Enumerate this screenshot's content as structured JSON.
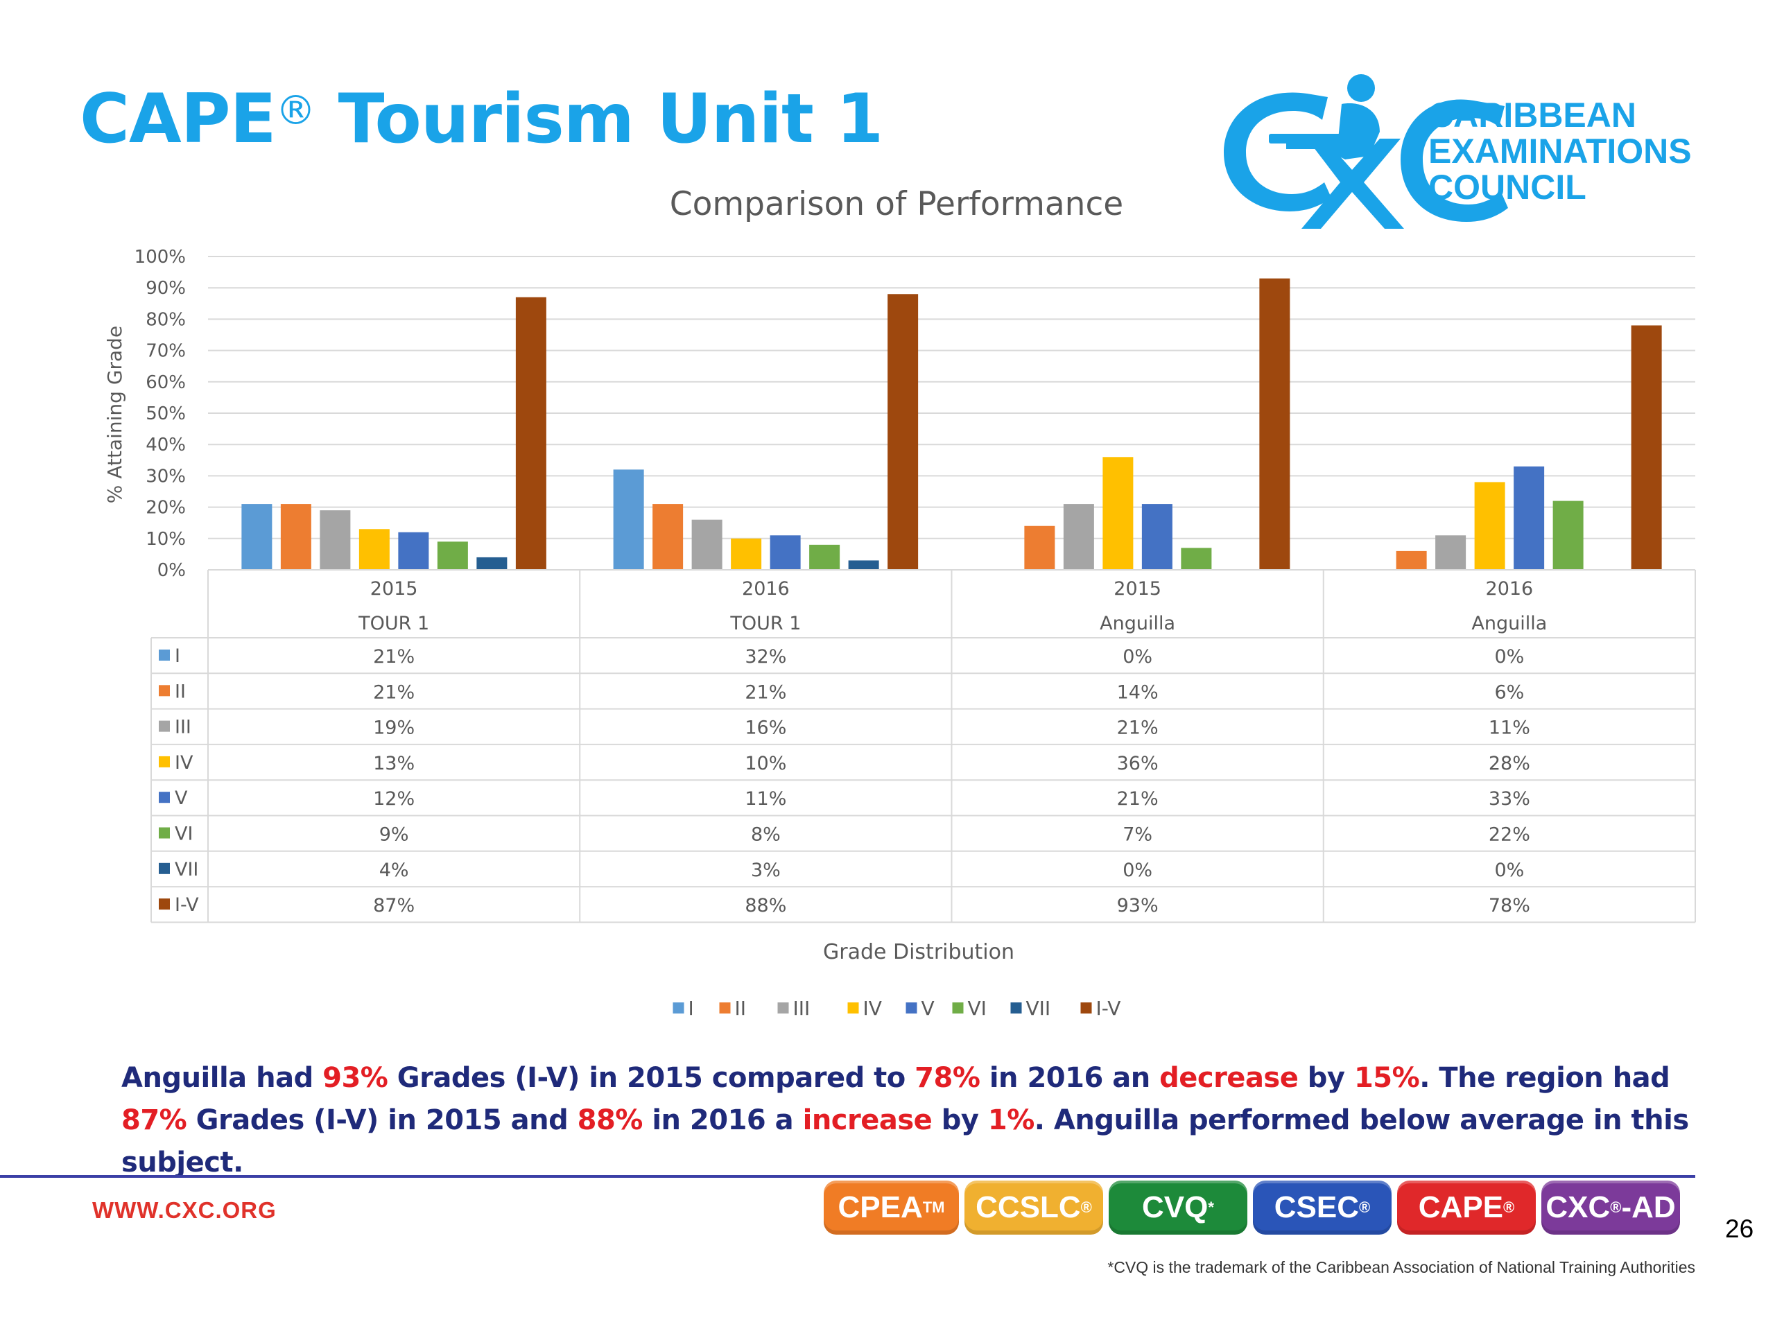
{
  "slide": {
    "title": "CAPE",
    "title_mark": "®",
    "title_rest": " Tourism Unit 1",
    "page_number": "26",
    "website": "WWW.CXC.ORG",
    "footnote": "*CVQ is the trademark of the Caribbean Association of National Training Authorities"
  },
  "logo": {
    "line1": "CARIBBEAN",
    "line2": "EXAMINATIONS",
    "line3": "COUNCIL",
    "emblem_text": "CXC"
  },
  "summary": {
    "p1": "Anguilla had ",
    "v1": "93%",
    "p2": " Grades (I-V) in 2015 compared to ",
    "v2": "78%",
    "p3": " in 2016 an ",
    "v3": "decrease",
    "p4": " by ",
    "v4": "15%",
    "p5": ". The region had ",
    "v5": "87%",
    "p6": " Grades (I-V) in 2015 and ",
    "v6": "88%",
    "p7": " in 2016 a ",
    "v7": "increase",
    "p8": " by ",
    "v8": "1%",
    "p9": ". Anguilla performed below average in this subject."
  },
  "badges": [
    {
      "label": "CPEA",
      "mark": "TM",
      "color": "#f07c25"
    },
    {
      "label": "CCSLC",
      "mark": "®",
      "color": "#f0b030"
    },
    {
      "label": "CVQ",
      "mark": "*",
      "color": "#1d8a3a"
    },
    {
      "label": "CSEC",
      "mark": "®",
      "color": "#2a55b8"
    },
    {
      "label": "CAPE",
      "mark": "®",
      "color": "#e0282a"
    },
    {
      "label": "CXC",
      "mark": "®",
      "suffix": "-AD",
      "color": "#7c3a9a"
    }
  ],
  "chart_data": {
    "type": "bar",
    "title": "Comparison of Performance",
    "xlabel": "Grade Distribution",
    "ylabel": "% Attaining Grade",
    "ylim": [
      0,
      100
    ],
    "yticks": [
      "0%",
      "10%",
      "20%",
      "30%",
      "40%",
      "50%",
      "60%",
      "70%",
      "80%",
      "90%",
      "100%"
    ],
    "grid": true,
    "legend_position": "bottom",
    "categories": [
      {
        "year": "2015",
        "group": "TOUR 1"
      },
      {
        "year": "2016",
        "group": "TOUR 1"
      },
      {
        "year": "2015",
        "group": "Anguilla"
      },
      {
        "year": "2016",
        "group": "Anguilla"
      }
    ],
    "series": [
      {
        "name": "I",
        "color": "#5b9bd5",
        "values": [
          21,
          32,
          0,
          0
        ]
      },
      {
        "name": "II",
        "color": "#ed7d31",
        "values": [
          21,
          21,
          14,
          6
        ]
      },
      {
        "name": "III",
        "color": "#a5a5a5",
        "values": [
          19,
          16,
          21,
          11
        ]
      },
      {
        "name": "IV",
        "color": "#ffc000",
        "values": [
          13,
          10,
          36,
          28
        ]
      },
      {
        "name": "V",
        "color": "#4472c4",
        "values": [
          12,
          11,
          21,
          33
        ]
      },
      {
        "name": "VI",
        "color": "#70ad47",
        "values": [
          9,
          8,
          7,
          22
        ]
      },
      {
        "name": "VII",
        "color": "#255e91",
        "values": [
          4,
          3,
          0,
          0
        ]
      },
      {
        "name": "I-V",
        "color": "#9e480e",
        "values": [
          87,
          88,
          93,
          78
        ]
      }
    ]
  }
}
